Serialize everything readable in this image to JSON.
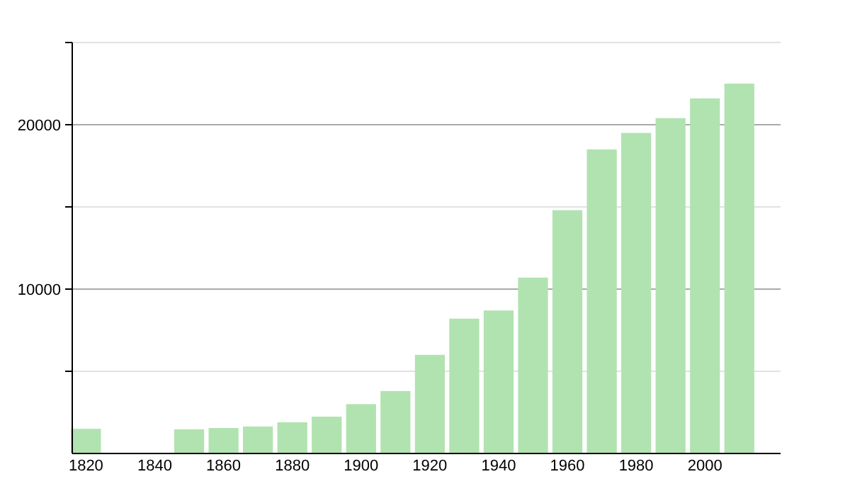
{
  "chart_data": {
    "type": "bar",
    "x": [
      1820,
      1850,
      1860,
      1870,
      1880,
      1890,
      1900,
      1910,
      1920,
      1930,
      1940,
      1950,
      1960,
      1970,
      1980,
      1990,
      2000,
      2010
    ],
    "values": [
      1500,
      1470,
      1550,
      1640,
      1900,
      2240,
      3000,
      3800,
      6000,
      8200,
      8700,
      10700,
      14800,
      18500,
      19500,
      20400,
      21600,
      22500
    ],
    "color": "#b1e3b0",
    "xlim": [
      1816,
      2022
    ],
    "xticks": [
      1820,
      1840,
      1860,
      1880,
      1900,
      1920,
      1940,
      1960,
      1980,
      2000
    ],
    "ylim": [
      0,
      25000
    ],
    "yticks": [
      {
        "value": 5000,
        "label": null
      },
      10000,
      {
        "value": 15000,
        "label": null
      },
      20000,
      {
        "value": 25000,
        "label": null
      }
    ],
    "grid": "y"
  }
}
